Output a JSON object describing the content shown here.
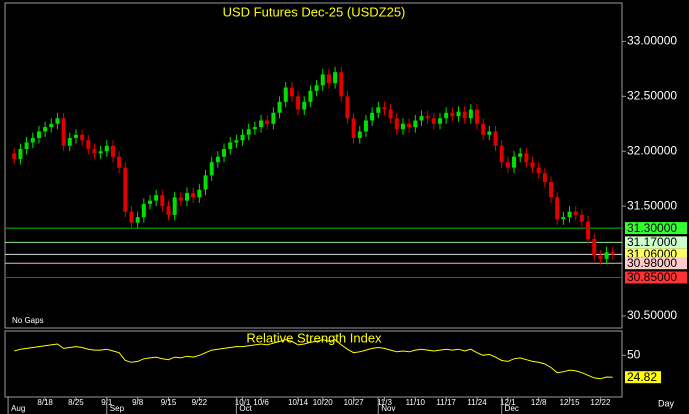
{
  "chart_data": {
    "type": "candlestick",
    "title": "USD Futures Dec-25 (USDZ25)",
    "annotation": "No Gaps",
    "interval_label": "Day",
    "xlim": [
      -1.5,
      98.5
    ],
    "xticks": [
      {
        "value": 5,
        "label": "8/18"
      },
      {
        "value": 10,
        "label": "8/25"
      },
      {
        "value": 15,
        "label": "9/1"
      },
      {
        "value": 20,
        "label": "9/8"
      },
      {
        "value": 25,
        "label": "9/15"
      },
      {
        "value": 30,
        "label": "9/22"
      },
      {
        "value": 37,
        "label": "10/1"
      },
      {
        "value": 40,
        "label": "10/6"
      },
      {
        "value": 46,
        "label": "10/14"
      },
      {
        "value": 50,
        "label": "10/20"
      },
      {
        "value": 55,
        "label": "10/27"
      },
      {
        "value": 60,
        "label": "11/3"
      },
      {
        "value": 65,
        "label": "11/10"
      },
      {
        "value": 70,
        "label": "11/17"
      },
      {
        "value": 75,
        "label": "11/24"
      },
      {
        "value": 80,
        "label": "12/1"
      },
      {
        "value": 85,
        "label": "12/8"
      },
      {
        "value": 90,
        "label": "12/15"
      },
      {
        "value": 95,
        "label": "12/22"
      }
    ],
    "month_ticks": [
      {
        "value": -1,
        "label": "Aug"
      },
      {
        "value": 15,
        "label": "Sep"
      },
      {
        "value": 36,
        "label": "Oct"
      },
      {
        "value": 59,
        "label": "Nov"
      },
      {
        "value": 79,
        "label": "Dec"
      }
    ],
    "ylim": [
      30.39,
      33.35
    ],
    "yticks": [
      {
        "value": 30.5,
        "label": "30.50000"
      },
      {
        "value": 31.5,
        "label": "31.50000"
      },
      {
        "value": 32,
        "label": "32.00000"
      },
      {
        "value": 32.5,
        "label": "32.50000"
      },
      {
        "value": 33,
        "label": "33.00000"
      }
    ],
    "up_color": "#00e000",
    "down_color": "#e00000",
    "levels": [
      {
        "value": 31.3,
        "label": "31.30000",
        "color": "#00c000",
        "box_color": "#33ff33"
      },
      {
        "value": 31.17,
        "label": "31.17000",
        "color": "#90ee90",
        "box_color": "#ccffcc"
      },
      {
        "value": 31.06,
        "label": "31.06000",
        "color": "#dddddd",
        "box_color": "#ffff66"
      },
      {
        "value": 30.98,
        "label": "30.98000",
        "color": "#ffb0b0",
        "box_color": "#ffcccc"
      },
      {
        "value": 30.85,
        "label": "30.85000",
        "color": "#ff0000",
        "box_color": "#ff3333"
      }
    ],
    "open": [
      31.98,
      31.93,
      32.02,
      32.08,
      32.12,
      32.18,
      32.22,
      32.25,
      32.3,
      32.05,
      32.12,
      32.15,
      32.1,
      32.02,
      31.98,
      32.0,
      32.05,
      31.95,
      31.85,
      31.45,
      31.35,
      31.4,
      31.52,
      31.55,
      31.6,
      31.5,
      31.42,
      31.58,
      31.55,
      31.62,
      31.58,
      31.65,
      31.78,
      31.9,
      31.95,
      32.02,
      32.08,
      32.1,
      32.15,
      32.2,
      32.22,
      32.28,
      32.25,
      32.35,
      32.45,
      32.58,
      32.5,
      32.38,
      32.45,
      32.55,
      32.6,
      32.7,
      32.62,
      32.72,
      32.5,
      32.3,
      32.12,
      32.18,
      32.28,
      32.35,
      32.4,
      32.38,
      32.3,
      32.2,
      32.25,
      32.22,
      32.28,
      32.32,
      32.3,
      32.25,
      32.3,
      32.35,
      32.32,
      32.36,
      32.3,
      32.38,
      32.25,
      32.15,
      32.18,
      32.05,
      31.9,
      31.85,
      31.95,
      31.98,
      31.9,
      31.85,
      31.8,
      31.72,
      31.58,
      31.38,
      31.4,
      31.45,
      31.42,
      31.36,
      31.2,
      31.05,
      31.02,
      31.08
    ],
    "high": [
      32.03,
      32.07,
      32.13,
      32.17,
      32.23,
      32.27,
      32.3,
      32.35,
      32.35,
      32.17,
      32.2,
      32.2,
      32.15,
      32.07,
      32.05,
      32.1,
      32.1,
      32.0,
      31.9,
      31.5,
      31.45,
      31.57,
      31.6,
      31.65,
      31.65,
      31.55,
      31.63,
      31.63,
      31.67,
      31.67,
      31.7,
      31.83,
      31.95,
      32.0,
      32.07,
      32.13,
      32.15,
      32.2,
      32.25,
      32.27,
      32.33,
      32.33,
      32.4,
      32.5,
      32.63,
      32.63,
      32.55,
      32.5,
      32.6,
      32.65,
      32.75,
      32.75,
      32.77,
      32.77,
      32.55,
      32.35,
      32.23,
      32.33,
      32.4,
      32.45,
      32.45,
      32.43,
      32.35,
      32.3,
      32.3,
      32.33,
      32.37,
      32.37,
      32.35,
      32.35,
      32.4,
      32.4,
      32.41,
      32.41,
      32.43,
      32.43,
      32.3,
      32.23,
      32.23,
      32.1,
      31.95,
      32.0,
      32.03,
      32.03,
      31.95,
      31.9,
      31.85,
      31.77,
      31.63,
      31.45,
      31.5,
      31.5,
      31.47,
      31.41,
      31.25,
      31.1,
      31.13,
      31.13
    ],
    "low": [
      31.88,
      31.88,
      31.97,
      32.03,
      32.07,
      32.13,
      32.17,
      32.2,
      32.0,
      32.0,
      32.07,
      32.05,
      31.97,
      31.93,
      31.93,
      31.95,
      31.9,
      31.8,
      31.4,
      31.3,
      31.3,
      31.35,
      31.47,
      31.5,
      31.45,
      31.37,
      31.37,
      31.5,
      31.5,
      31.53,
      31.53,
      31.6,
      31.73,
      31.85,
      31.9,
      31.97,
      32.03,
      32.05,
      32.1,
      32.15,
      32.17,
      32.2,
      32.2,
      32.3,
      32.4,
      32.45,
      32.33,
      32.33,
      32.4,
      32.5,
      32.55,
      32.57,
      32.57,
      32.45,
      32.25,
      32.07,
      32.07,
      32.13,
      32.23,
      32.3,
      32.33,
      32.25,
      32.15,
      32.15,
      32.17,
      32.17,
      32.23,
      32.25,
      32.2,
      32.2,
      32.25,
      32.27,
      32.27,
      32.25,
      32.25,
      32.2,
      32.1,
      32.1,
      32.0,
      31.85,
      31.8,
      31.8,
      31.9,
      31.85,
      31.8,
      31.75,
      31.67,
      31.53,
      31.33,
      31.33,
      31.35,
      31.37,
      31.31,
      31.15,
      31.0,
      30.97,
      30.97,
      31.01
    ],
    "close": [
      31.93,
      32.02,
      32.08,
      32.12,
      32.18,
      32.22,
      32.25,
      32.3,
      32.05,
      32.12,
      32.15,
      32.1,
      32.02,
      31.98,
      32.0,
      32.05,
      31.95,
      31.85,
      31.45,
      31.35,
      31.4,
      31.52,
      31.55,
      31.6,
      31.5,
      31.42,
      31.58,
      31.55,
      31.62,
      31.58,
      31.65,
      31.78,
      31.9,
      31.95,
      32.02,
      32.08,
      32.1,
      32.15,
      32.2,
      32.22,
      32.28,
      32.25,
      32.35,
      32.45,
      32.58,
      32.5,
      32.38,
      32.45,
      32.55,
      32.6,
      32.7,
      32.62,
      32.72,
      32.5,
      32.3,
      32.12,
      32.18,
      32.28,
      32.35,
      32.4,
      32.38,
      32.3,
      32.2,
      32.25,
      32.22,
      32.28,
      32.32,
      32.3,
      32.25,
      32.3,
      32.35,
      32.32,
      32.36,
      32.3,
      32.38,
      32.25,
      32.15,
      32.18,
      32.05,
      31.9,
      31.85,
      31.95,
      31.98,
      31.9,
      31.85,
      31.8,
      31.72,
      31.58,
      31.38,
      31.4,
      31.45,
      31.42,
      31.36,
      31.2,
      31.05,
      31.02,
      31.08,
      31.06
    ],
    "rsi": {
      "title": "Relative Strength Index",
      "color": "#ffff00",
      "box_color": "#ffff00",
      "ylim": [
        2,
        78
      ],
      "yticks": [
        50
      ],
      "values": [
        55,
        57,
        58,
        59,
        60,
        61,
        62,
        63,
        58,
        59,
        60,
        59,
        57,
        56,
        56,
        57,
        55,
        53,
        44,
        42,
        43,
        46,
        47,
        48,
        46,
        45,
        48,
        47,
        49,
        48,
        50,
        53,
        56,
        57,
        58,
        59,
        60,
        60,
        61,
        62,
        63,
        62,
        64,
        66,
        68,
        66,
        62,
        63,
        65,
        66,
        68,
        66,
        68,
        62,
        57,
        53,
        54,
        56,
        58,
        59,
        58,
        56,
        54,
        55,
        54,
        56,
        57,
        56,
        55,
        56,
        57,
        56,
        57,
        55,
        57,
        53,
        50,
        51,
        48,
        44,
        43,
        46,
        47,
        45,
        43,
        42,
        40,
        36,
        30,
        31,
        33,
        32,
        30,
        27,
        24,
        23,
        25,
        24.82
      ]
    }
  }
}
